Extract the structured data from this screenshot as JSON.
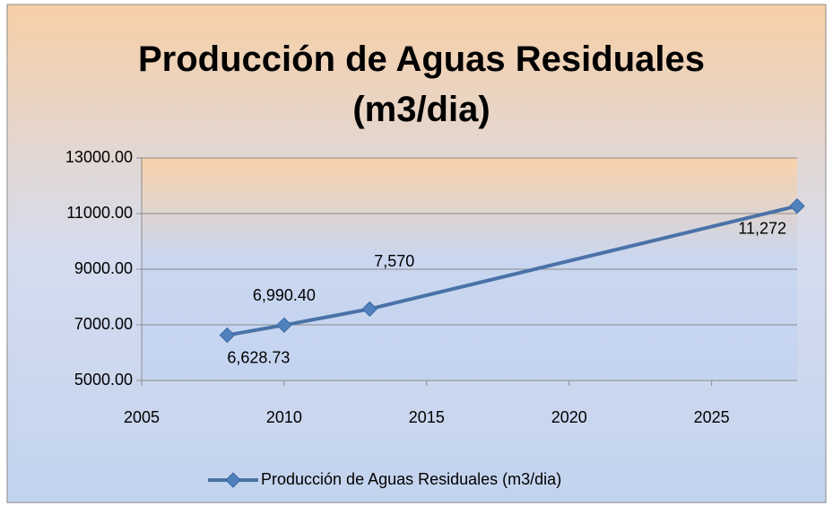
{
  "chart_data": {
    "type": "line",
    "title": "Producción de Aguas Residuales (m3/dia)",
    "x": [
      2008,
      2010,
      2013,
      2028
    ],
    "series": [
      {
        "name": "Producción de Aguas Residuales (m3/dia)",
        "color": "#4a72a8",
        "values": [
          6628.73,
          6990.4,
          7570,
          11272
        ],
        "value_labels": [
          "6,628.73",
          "6,990.40",
          "7,570",
          "11,272"
        ]
      }
    ],
    "xlim": [
      2005,
      2028
    ],
    "xticks": [
      2005,
      2010,
      2015,
      2020,
      2025
    ],
    "ylim": [
      5000,
      13000
    ],
    "yticks": [
      {
        "value": 5000,
        "label": "5000.00"
      },
      {
        "value": 7000,
        "label": "7000.00"
      },
      {
        "value": 9000,
        "label": "9000.00"
      },
      {
        "value": 11000,
        "label": "11000.00"
      },
      {
        "value": 13000,
        "label": "13000.00"
      }
    ],
    "grid": true,
    "legend": "bottom"
  }
}
